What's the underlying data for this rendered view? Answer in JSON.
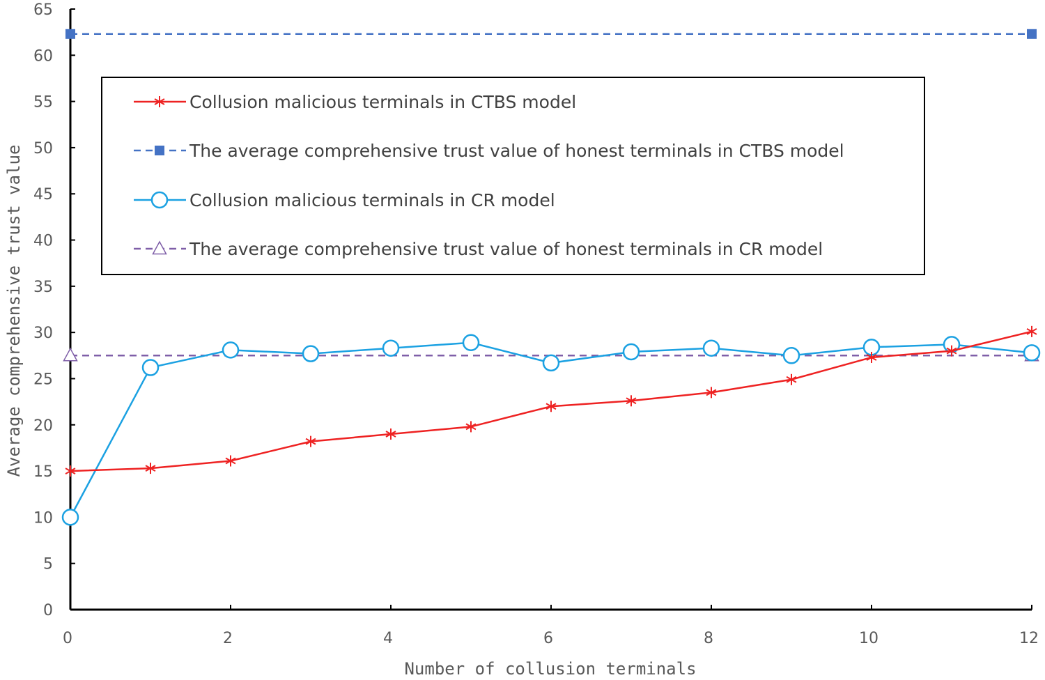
{
  "chart_data": {
    "type": "line",
    "xlabel": "Number of collusion terminals",
    "ylabel": "Average comprehensive trust value",
    "xlim": [
      0,
      12
    ],
    "ylim": [
      0,
      65
    ],
    "x_ticks": [
      "0",
      "2",
      "4",
      "6",
      "8",
      "10",
      "12"
    ],
    "y_ticks": [
      "0",
      "5",
      "10",
      "15",
      "20",
      "25",
      "30",
      "35",
      "40",
      "45",
      "50",
      "55",
      "60",
      "65"
    ],
    "grid": false,
    "legend_position": "upper-center inside plot",
    "series": [
      {
        "name": "Collusion malicious terminals in CTBS model",
        "color": "#ee2222",
        "line_style": "solid",
        "marker": "asterisk",
        "x": [
          0,
          1,
          2,
          3,
          4,
          5,
          6,
          7,
          8,
          9,
          10,
          11,
          12
        ],
        "values": [
          15.0,
          15.3,
          16.1,
          18.2,
          19.0,
          19.8,
          22.0,
          22.6,
          23.5,
          24.9,
          27.3,
          28.0,
          30.1
        ]
      },
      {
        "name": "The average comprehensive trust value of honest terminals in CTBS model",
        "color": "#4472c4",
        "line_style": "dashed",
        "marker": "square",
        "x": [
          0,
          12
        ],
        "values": [
          62.3,
          62.3
        ]
      },
      {
        "name": "Collusion malicious terminals in CR model",
        "color": "#1ba1e2",
        "line_style": "solid",
        "marker": "circle",
        "x": [
          0,
          1,
          2,
          3,
          4,
          5,
          6,
          7,
          8,
          9,
          10,
          11,
          12
        ],
        "values": [
          10.0,
          26.2,
          28.1,
          27.7,
          28.3,
          28.9,
          26.7,
          27.9,
          28.3,
          27.5,
          28.4,
          28.7,
          27.8
        ]
      },
      {
        "name": "The average comprehensive trust value of honest terminals in CR model",
        "color": "#7f5fa8",
        "line_style": "dashed",
        "marker": "triangle",
        "x": [
          0,
          12
        ],
        "values": [
          27.5,
          27.5
        ]
      }
    ]
  }
}
